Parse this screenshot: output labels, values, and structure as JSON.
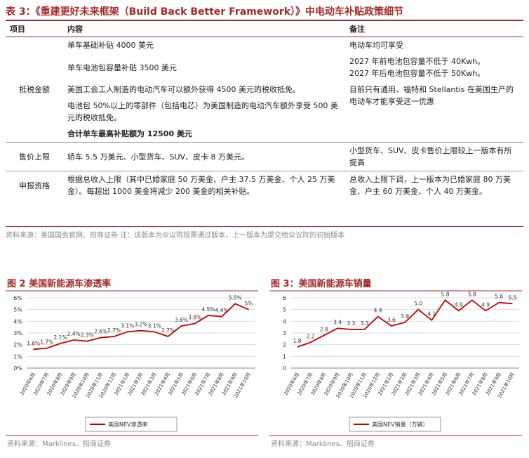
{
  "table": {
    "title": "表 3：《重建更好未来框架（Build Back Better Framework）》中电动车补贴政策细节",
    "header": [
      "项目",
      "内容",
      "备注"
    ],
    "rows": [
      {
        "item": "抵税金额",
        "entries": [
          {
            "content": "单车基础补贴 4000 美元",
            "note": "电动车均可享受"
          },
          {
            "content": "单车电池包容量补贴 3500 美元",
            "note": "2027 年前电池包容量不低于 40Kwh。\n2027 年后电池包容量不低于 50Kwh。"
          },
          {
            "content": "美国工会工人制造的电动汽车可以额外获得 4500 美元的税收抵免。",
            "note": "目前只有通用、福特和 Stellantis 在美国生产的电动车才能享受这一优惠"
          },
          {
            "content": "电池包 50%以上的零部件（包括电芯）为美国制造的电动汽车额外享受 500 美元的税收抵免。"
          },
          {
            "content": "合计单车最高补贴额为 12500 美元"
          }
        ]
      },
      {
        "item": "售价上限",
        "entries": [
          {
            "content": "轿车 5.5 万美元、小型货车、SUV、皮卡 8 万美元。",
            "note": "小型货车、SUV、皮卡售价上限较上一版本有所提高"
          }
        ]
      },
      {
        "item": "申报资格",
        "entries": [
          {
            "content": "根据总收入上限（其中已婚家庭 50 万美金、户主 37.5 万美金、个人 25 万美金）。每超出 1000 美金将减少 200 美金的相关补贴。",
            "note": "总收入上限下调，上一版本为已婚家庭 80 万美金、户主 60 万美金、个人 40 万美金。"
          }
        ]
      }
    ],
    "source": "资料来源：美国国会官网、招商证券      注：该版本为众议院投票通过版本，上一版本为提交给众议院的初始版本"
  },
  "chart_data": [
    {
      "type": "line",
      "title": "图 2  美国新能源车渗透率",
      "categories": [
        "2020年6月",
        "2020年7月",
        "2020年8月",
        "2020年9月",
        "2020年10月",
        "2020年11月",
        "2020年12月",
        "2021年1月",
        "2021年2月",
        "2021年3月",
        "2021年4月",
        "2021年5月",
        "2021年6月",
        "2021年7月",
        "2021年8月",
        "2021年9月",
        "2021年10月"
      ],
      "series": [
        {
          "name": "美国NEV渗透率",
          "color": "#c00000",
          "values": [
            1.6,
            1.7,
            2.1,
            2.4,
            2.3,
            2.6,
            2.7,
            3.1,
            3.2,
            3.1,
            2.7,
            3.6,
            3.8,
            4.5,
            4.4,
            5.5,
            5
          ],
          "value_labels": [
            "1.6%",
            "1.7%",
            "2.1%",
            "2.4%",
            "2.3%",
            "2.6%",
            "2.7%",
            "3.1%",
            "3.2%",
            "3.1%",
            "2.7%",
            "3.6%",
            "3.8%",
            "4.5%",
            "4.4%",
            "5.5%",
            "5%"
          ]
        }
      ],
      "ylim": [
        0,
        6
      ],
      "yticks": [
        {
          "value": 0,
          "label": "0%"
        },
        {
          "value": 1,
          "label": "1%"
        },
        {
          "value": 2,
          "label": "2%"
        },
        {
          "value": 3,
          "label": "3%"
        },
        {
          "value": 4,
          "label": "4%"
        },
        {
          "value": 5,
          "label": "5%"
        },
        {
          "value": 6,
          "label": "6%"
        }
      ],
      "grid": true,
      "source": "资料来源：Marklines、招商证券"
    },
    {
      "type": "line",
      "title": "图 3：美国新能源车销量",
      "categories": [
        "2020年6月",
        "2020年7月",
        "2020年8月",
        "2020年9月",
        "2020年10月",
        "2020年11月",
        "2020年12月",
        "2021年1月",
        "2021年2月",
        "2021年3月",
        "2021年4月",
        "2021年5月",
        "2021年6月",
        "2021年7月",
        "2021年8月",
        "2021年9月",
        "2021年10月"
      ],
      "series": [
        {
          "name": "美国NEV销量（万辆）",
          "color": "#c00000",
          "values": [
            1.8,
            2.2,
            2.8,
            3.4,
            3.3,
            3.3,
            4.4,
            3.6,
            3.9,
            5.0,
            4.1,
            5.8,
            4.9,
            5.8,
            4.9,
            5.6,
            5.5
          ],
          "value_labels": [
            "1.8",
            "2.2",
            "2.8",
            "3.4",
            "3.3",
            "3.3",
            "4.4",
            "3.6",
            "3.9",
            "5.0",
            "4.1",
            "5.8",
            "4.9",
            "5.8",
            "4.9",
            "5.6",
            "5.5"
          ]
        }
      ],
      "ylim": [
        0,
        6
      ],
      "yticks": [
        0,
        1,
        2,
        3,
        4,
        5,
        6
      ],
      "grid": true,
      "source": "资料来源：Marklines、招商证券"
    }
  ]
}
